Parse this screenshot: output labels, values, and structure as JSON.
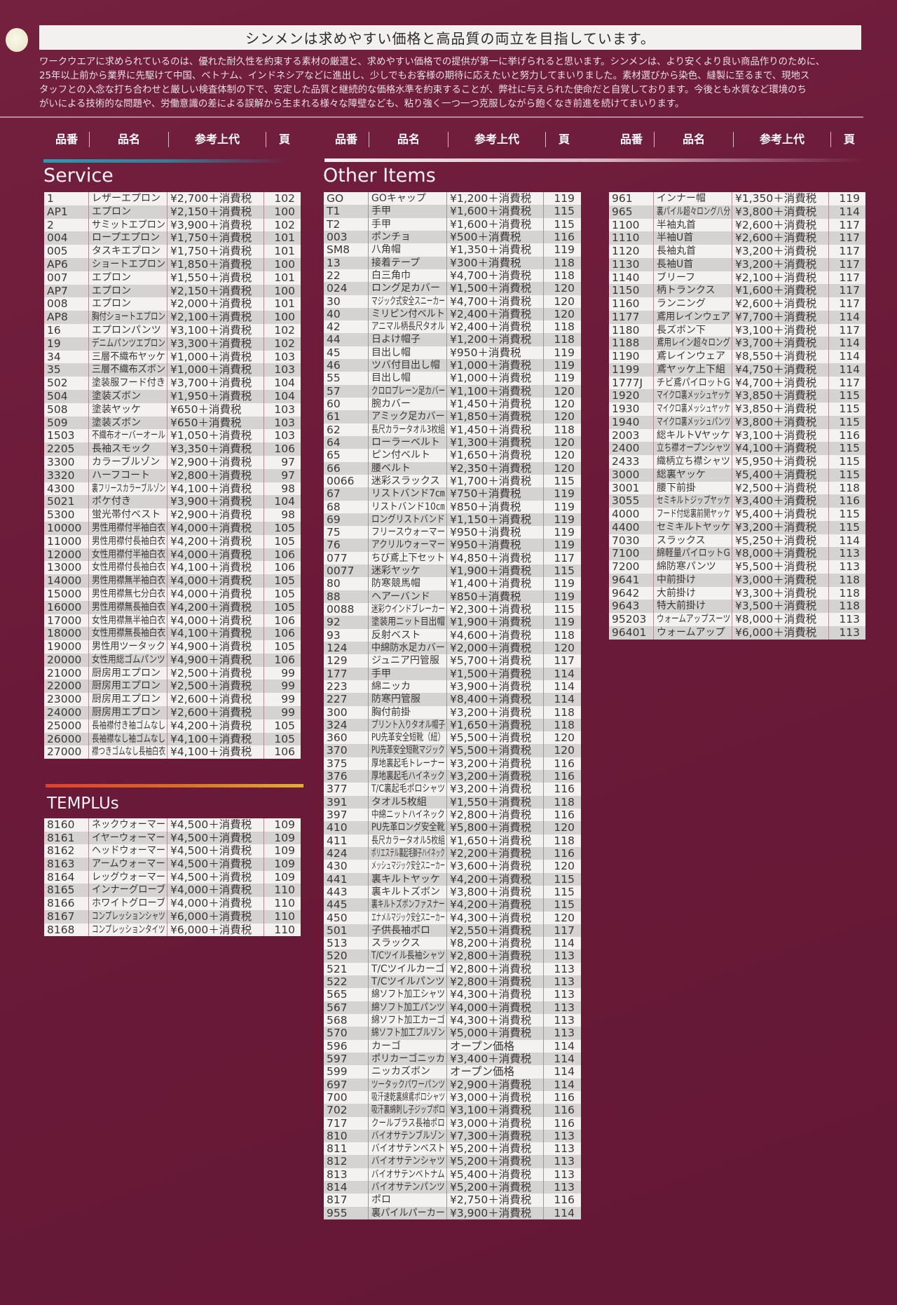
{
  "header": {
    "title": "シンメンは求めやすい価格と高品質の両立を目指しています。",
    "intro_lines": [
      "ワークウエアに求められているのは、優れた耐久性を約束する素材の厳選と、求めやすい価格での提供が第一に挙げられると思います。シンメンは、より安くより良い商品作りのために、",
      "25年以上前から業界に先駆けて中国、ベトナム、インドネシアなどに進出し、少しでもお客様の期待に応えたいと努力してまいりました。素材選びから染色、縫製に至るまで、現地ス",
      "タッフとの入念な打ち合わせと厳しい検査体制の下で、安定した品質と継続的な価格水準を約束することが、弊社に与えられた使命だと自覚しております。今後とも水質など環境のち",
      "がいによる技術的な問題や、労働意識の差による誤解から生まれる様々な障壁なども、粘り強く一つ一つ克服しながら飽くなき前進を続けてまいります。"
    ]
  },
  "columns": [
    "品番",
    "品名",
    "参考上代",
    "頁"
  ],
  "colors": {
    "background": "#6e1c3c",
    "service_bar": "#2a9bb0",
    "templus_bar_start": "#e0402a",
    "templus_bar_end": "#e0b030"
  },
  "sections": {
    "service": {
      "title": "Service",
      "rows": [
        [
          "1",
          "レザーエプロン",
          "¥2,700＋消費税",
          "102"
        ],
        [
          "AP1",
          "エプロン",
          "¥2,150＋消費税",
          "100"
        ],
        [
          "2",
          "サミットエプロン",
          "¥3,900＋消費税",
          "102"
        ],
        [
          "004",
          "ロープエプロン",
          "¥1,750＋消費税",
          "101"
        ],
        [
          "005",
          "タスキエプロン",
          "¥1,750＋消費税",
          "101"
        ],
        [
          "AP6",
          "ショートエプロン",
          "¥1,850＋消費税",
          "100"
        ],
        [
          "007",
          "エプロン",
          "¥1,550＋消費税",
          "101"
        ],
        [
          "AP7",
          "エプロン",
          "¥2,150＋消費税",
          "100"
        ],
        [
          "008",
          "エプロン",
          "¥2,000＋消費税",
          "101"
        ],
        [
          "AP8",
          "胸付ショートエプロン",
          "¥2,100＋消費税",
          "100"
        ],
        [
          "16",
          "エプロンパンツ",
          "¥3,100＋消費税",
          "102"
        ],
        [
          "19",
          "デニムパンツエプロン",
          "¥3,300＋消費税",
          "102"
        ],
        [
          "34",
          "三層不織布ヤッケ",
          "¥1,000＋消費税",
          "103"
        ],
        [
          "35",
          "三層不織布ズボン",
          "¥1,000＋消費税",
          "103"
        ],
        [
          "502",
          "塗装服フード付き",
          "¥3,700＋消費税",
          "104"
        ],
        [
          "504",
          "塗装ズボン",
          "¥1,950＋消費税",
          "104"
        ],
        [
          "508",
          "塗装ヤッケ",
          "¥650＋消費税",
          "103"
        ],
        [
          "509",
          "塗装ズボン",
          "¥650＋消費税",
          "103"
        ],
        [
          "1503",
          "不織布オーバーオール",
          "¥1,050＋消費税",
          "103"
        ],
        [
          "2205",
          "長袖スモック",
          "¥3,350＋消費税",
          "106"
        ],
        [
          "3300",
          "カラーブルゾン",
          "¥2,900＋消費税",
          "97"
        ],
        [
          "3320",
          "ハーフコート",
          "¥2,800＋消費税",
          "97"
        ],
        [
          "4300",
          "裏フリースカラーブルゾン",
          "¥4,100＋消費税",
          "98"
        ],
        [
          "5021",
          "ポケ付き",
          "¥3,900＋消費税",
          "104"
        ],
        [
          "5300",
          "蛍光帯付ベスト",
          "¥2,900＋消費税",
          "98"
        ],
        [
          "10000",
          "男性用襟付半袖白衣",
          "¥4,000＋消費税",
          "105"
        ],
        [
          "11000",
          "男性用襟付長袖白衣",
          "¥4,200＋消費税",
          "105"
        ],
        [
          "12000",
          "女性用襟付半袖白衣",
          "¥4,000＋消費税",
          "106"
        ],
        [
          "13000",
          "女性用襟付長袖白衣",
          "¥4,100＋消費税",
          "106"
        ],
        [
          "14000",
          "男性用襟無半袖白衣",
          "¥4,000＋消費税",
          "105"
        ],
        [
          "15000",
          "男性用襟無七分白衣",
          "¥4,000＋消費税",
          "105"
        ],
        [
          "16000",
          "男性用襟無長袖白衣",
          "¥4,200＋消費税",
          "105"
        ],
        [
          "17000",
          "女性用襟無半袖白衣",
          "¥4,000＋消費税",
          "106"
        ],
        [
          "18000",
          "女性用襟無長袖白衣",
          "¥4,100＋消費税",
          "106"
        ],
        [
          "19000",
          "男性用ツータック",
          "¥4,900＋消費税",
          "105"
        ],
        [
          "20000",
          "女性用総ゴムパンツ",
          "¥4,900＋消費税",
          "106"
        ],
        [
          "21000",
          "厨房用エプロン",
          "¥2,500＋消費税",
          "99"
        ],
        [
          "22000",
          "厨房用エプロン",
          "¥2,500＋消費税",
          "99"
        ],
        [
          "23000",
          "厨房用エプロン",
          "¥2,600＋消費税",
          "99"
        ],
        [
          "24000",
          "厨房用エプロン",
          "¥2,600＋消費税",
          "99"
        ],
        [
          "25000",
          "長袖襟付き袖ゴムなし",
          "¥4,200＋消費税",
          "105"
        ],
        [
          "26000",
          "長袖襟なし袖ゴムなし",
          "¥4,100＋消費税",
          "105"
        ],
        [
          "27000",
          "襟つきゴムなし長袖白衣",
          "¥4,100＋消費税",
          "106"
        ]
      ]
    },
    "templus": {
      "title": "TEMPLUs",
      "rows": [
        [
          "8160",
          "ネックウォーマー",
          "¥4,500＋消費税",
          "109"
        ],
        [
          "8161",
          "イヤーウォーマー",
          "¥4,500＋消費税",
          "109"
        ],
        [
          "8162",
          "ヘッドウォーマー",
          "¥4,500＋消費税",
          "109"
        ],
        [
          "8163",
          "アームウォーマー",
          "¥4,500＋消費税",
          "109"
        ],
        [
          "8164",
          "レッグウォーマー",
          "¥4,500＋消費税",
          "109"
        ],
        [
          "8165",
          "インナーグローブ",
          "¥4,000＋消費税",
          "110"
        ],
        [
          "8166",
          "ホワイトグローブ",
          "¥4,000＋消費税",
          "110"
        ],
        [
          "8167",
          "コンプレッションシャツ",
          "¥6,000＋消費税",
          "110"
        ],
        [
          "8168",
          "コンプレッションタイツ",
          "¥6,000＋消費税",
          "110"
        ]
      ]
    },
    "other": {
      "title": "Other Items",
      "rows": [
        [
          "GO",
          "GOキャップ",
          "¥1,200＋消費税",
          "119"
        ],
        [
          "T1",
          "手甲",
          "¥1,600＋消費税",
          "115"
        ],
        [
          "T2",
          "手甲",
          "¥1,600＋消費税",
          "115"
        ],
        [
          "003",
          "ポンチョ",
          "¥500＋消費税",
          "116"
        ],
        [
          "SM8",
          "八角帽",
          "¥1,350＋消費税",
          "119"
        ],
        [
          "13",
          "接着テープ",
          "¥300＋消費税",
          "118"
        ],
        [
          "22",
          "白三角巾",
          "¥4,700＋消費税",
          "118"
        ],
        [
          "024",
          "ロング足カバー",
          "¥1,500＋消費税",
          "120"
        ],
        [
          "30",
          "マジック式安全スニーカー",
          "¥4,700＋消費税",
          "120"
        ],
        [
          "40",
          "ミリピン付ベルト",
          "¥2,400＋消費税",
          "120"
        ],
        [
          "42",
          "アニマル柄長尺タオル",
          "¥2,400＋消費税",
          "118"
        ],
        [
          "44",
          "日よけ帽子",
          "¥1,200＋消費税",
          "118"
        ],
        [
          "45",
          "目出し帽",
          "¥950＋消費税",
          "119"
        ],
        [
          "46",
          "ツバ付目出し帽",
          "¥1,000＋消費税",
          "119"
        ],
        [
          "55",
          "目出し帽",
          "¥1,000＋消費税",
          "119"
        ],
        [
          "57",
          "クロロプレーン足カバー",
          "¥1,100＋消費税",
          "120"
        ],
        [
          "60",
          "腕カバー",
          "¥1,450＋消費税",
          "120"
        ],
        [
          "61",
          "アミック足カバー",
          "¥1,850＋消費税",
          "120"
        ],
        [
          "62",
          "長尺カラータオル3枚組",
          "¥1,450＋消費税",
          "118"
        ],
        [
          "64",
          "ローラーベルト",
          "¥1,300＋消費税",
          "120"
        ],
        [
          "65",
          "ピン付ベルト",
          "¥1,650＋消費税",
          "120"
        ],
        [
          "66",
          "腰ベルト",
          "¥2,350＋消費税",
          "120"
        ],
        [
          "0066",
          "迷彩スラックス",
          "¥1,700＋消費税",
          "115"
        ],
        [
          "67",
          "リストバンド7㎝",
          "¥750＋消費税",
          "119"
        ],
        [
          "68",
          "リストバンド10㎝",
          "¥850＋消費税",
          "119"
        ],
        [
          "69",
          "ロングリストバンド",
          "¥1,150＋消費税",
          "119"
        ],
        [
          "75",
          "フリースウォーマー",
          "¥950＋消費税",
          "119"
        ],
        [
          "76",
          "アクリルウォーマー",
          "¥950＋消費税",
          "119"
        ],
        [
          "077",
          "ちび鳶上下セット",
          "¥4,850＋消費税",
          "117"
        ],
        [
          "0077",
          "迷彩ヤッケ",
          "¥1,900＋消費税",
          "115"
        ],
        [
          "80",
          "防寒競馬帽",
          "¥1,400＋消費税",
          "119"
        ],
        [
          "88",
          "ヘアーバンド",
          "¥850＋消費税",
          "119"
        ],
        [
          "0088",
          "迷彩ウインドブレーカー",
          "¥2,300＋消費税",
          "115"
        ],
        [
          "92",
          "塗装用ニット目出帽",
          "¥1,900＋消費税",
          "119"
        ],
        [
          "93",
          "反射ベスト",
          "¥4,600＋消費税",
          "118"
        ],
        [
          "124",
          "中綿防水足カバー",
          "¥2,000＋消費税",
          "120"
        ],
        [
          "129",
          "ジュニア円管服",
          "¥5,700＋消費税",
          "117"
        ],
        [
          "177",
          "手甲",
          "¥1,500＋消費税",
          "114"
        ],
        [
          "223",
          "綿ニッカ",
          "¥3,900＋消費税",
          "114"
        ],
        [
          "227",
          "防寒円管服",
          "¥8,400＋消費税",
          "114"
        ],
        [
          "300",
          "胸付前掛",
          "¥3,200＋消費税",
          "118"
        ],
        [
          "324",
          "プリント入りタオル帽子",
          "¥1,650＋消費税",
          "118"
        ],
        [
          "360",
          "PU先革安全短靴（紐）",
          "¥5,500＋消費税",
          "120"
        ],
        [
          "370",
          "PU先革安全短靴マジック",
          "¥5,500＋消費税",
          "120"
        ],
        [
          "375",
          "厚地裏起毛トレーナー",
          "¥3,200＋消費税",
          "116"
        ],
        [
          "376",
          "厚地裏起毛ハイネック",
          "¥3,200＋消費税",
          "116"
        ],
        [
          "377",
          "T/C裏起毛ポロシャツ",
          "¥3,200＋消費税",
          "116"
        ],
        [
          "391",
          "タオル5枚組",
          "¥1,550＋消費税",
          "118"
        ],
        [
          "397",
          "中綿ニットハイネック",
          "¥2,800＋消費税",
          "116"
        ],
        [
          "410",
          "PU先革ロング安全靴",
          "¥5,800＋消費税",
          "120"
        ],
        [
          "411",
          "長尺カラータオル5枚組",
          "¥1,650＋消費税",
          "118"
        ],
        [
          "424",
          "ポリエステル裏起毛獅子ハイネック",
          "¥2,200＋消費税",
          "116"
        ],
        [
          "430",
          "メッシュマジック安全スニーカー",
          "¥3,600＋消費税",
          "120"
        ],
        [
          "441",
          "裏キルトヤッケ",
          "¥4,200＋消費税",
          "115"
        ],
        [
          "443",
          "裏キルトズボン",
          "¥3,800＋消費税",
          "115"
        ],
        [
          "445",
          "裏キルトズボンファスナー",
          "¥4,200＋消費税",
          "115"
        ],
        [
          "450",
          "エナメルマジック安全スニーカー",
          "¥4,300＋消費税",
          "120"
        ],
        [
          "501",
          "子供長袖ポロ",
          "¥2,550＋消費税",
          "117"
        ],
        [
          "513",
          "スラックス",
          "¥8,200＋消費税",
          "114"
        ],
        [
          "520",
          "T/Cツイル長袖シャツ",
          "¥2,800＋消費税",
          "113"
        ],
        [
          "521",
          "T/Cツイルカーゴ",
          "¥2,800＋消費税",
          "113"
        ],
        [
          "522",
          "T/Cツイルパンツ",
          "¥2,800＋消費税",
          "113"
        ],
        [
          "565",
          "綿ソフト加工シャツ",
          "¥4,300＋消費税",
          "113"
        ],
        [
          "567",
          "綿ソフト加工パンツ",
          "¥4,000＋消費税",
          "113"
        ],
        [
          "568",
          "綿ソフト加工カーゴ",
          "¥4,300＋消費税",
          "113"
        ],
        [
          "570",
          "綿ソフト加工ブルゾン",
          "¥5,000＋消費税",
          "113"
        ],
        [
          "596",
          "カーゴ",
          "オープン価格",
          "114"
        ],
        [
          "597",
          "ポリカーゴニッカ",
          "¥3,400＋消費税",
          "114"
        ],
        [
          "599",
          "ニッカズボン",
          "オープン価格",
          "114"
        ],
        [
          "697",
          "ツータックパワーパンツ",
          "¥2,900＋消費税",
          "114"
        ],
        [
          "700",
          "吸汗速乾裏綿鳶ポロシャツ",
          "¥3,000＋消費税",
          "116"
        ],
        [
          "702",
          "吸汗裏綿刺し子ジップポロ",
          "¥3,100＋消費税",
          "116"
        ],
        [
          "717",
          "クールプラス長袖ポロ",
          "¥3,000＋消費税",
          "116"
        ],
        [
          "810",
          "バイオサテンブルゾン",
          "¥7,300＋消費税",
          "113"
        ],
        [
          "811",
          "バイオサテンベスト",
          "¥5,200＋消費税",
          "113"
        ],
        [
          "812",
          "バイオサテンシャツ",
          "¥5,200＋消費税",
          "113"
        ],
        [
          "813",
          "バイオサテンベトナム",
          "¥5,400＋消費税",
          "113"
        ],
        [
          "814",
          "バイオサテンパンツ",
          "¥5,200＋消費税",
          "113"
        ],
        [
          "817",
          "ポロ",
          "¥2,750＋消費税",
          "116"
        ],
        [
          "955",
          "裏パイルパーカー",
          "¥3,900＋消費税",
          "114"
        ]
      ]
    },
    "other2": {
      "rows": [
        [
          "961",
          "インナー帽",
          "¥1,350＋消費税",
          "119"
        ],
        [
          "965",
          "裏パイル超々ロング八分",
          "¥3,800＋消費税",
          "114"
        ],
        [
          "1100",
          "半袖丸首",
          "¥2,600＋消費税",
          "117"
        ],
        [
          "1110",
          "半袖U首",
          "¥2,600＋消費税",
          "117"
        ],
        [
          "1120",
          "長袖丸首",
          "¥3,200＋消費税",
          "117"
        ],
        [
          "1130",
          "長袖U首",
          "¥3,200＋消費税",
          "117"
        ],
        [
          "1140",
          "ブリーフ",
          "¥2,100＋消費税",
          "117"
        ],
        [
          "1150",
          "柄トランクス",
          "¥1,600＋消費税",
          "117"
        ],
        [
          "1160",
          "ランニング",
          "¥2,600＋消費税",
          "117"
        ],
        [
          "1177",
          "鳶用レインウェア",
          "¥7,700＋消費税",
          "114"
        ],
        [
          "1180",
          "長ズボン下",
          "¥3,100＋消費税",
          "117"
        ],
        [
          "1188",
          "鳶用レイン超々ロング",
          "¥3,700＋消費税",
          "114"
        ],
        [
          "1190",
          "鳶レインウェア",
          "¥8,550＋消費税",
          "114"
        ],
        [
          "1199",
          "鳶ヤッケ上下組",
          "¥4,750＋消費税",
          "114"
        ],
        [
          "1777J",
          "チビ鳶パイロットG",
          "¥4,700＋消費税",
          "117"
        ],
        [
          "1920",
          "マイクロ裏メッシュヤッケ",
          "¥3,850＋消費税",
          "115"
        ],
        [
          "1930",
          "マイクロ裏メッシュヤッケ",
          "¥3,850＋消費税",
          "115"
        ],
        [
          "1940",
          "マイクロ裏メッシュパンツ",
          "¥3,800＋消費税",
          "115"
        ],
        [
          "2003",
          "総キルトVヤッケ",
          "¥3,100＋消費税",
          "116"
        ],
        [
          "2400",
          "立ち襟オープンシャツ",
          "¥4,100＋消費税",
          "115"
        ],
        [
          "2433",
          "織柄立ち襟シャツ",
          "¥5,950＋消費税",
          "115"
        ],
        [
          "3000",
          "総裏ヤッケ",
          "¥5,400＋消費税",
          "115"
        ],
        [
          "3001",
          "腰下前掛",
          "¥2,500＋消費税",
          "118"
        ],
        [
          "3055",
          "セミキルトジップヤッケ",
          "¥3,400＋消費税",
          "116"
        ],
        [
          "4000",
          "フード付総裏前開ヤッケ",
          "¥5,400＋消費税",
          "115"
        ],
        [
          "4400",
          "セミキルトヤッケ",
          "¥3,200＋消費税",
          "115"
        ],
        [
          "7030",
          "スラックス",
          "¥5,250＋消費税",
          "114"
        ],
        [
          "7100",
          "綿軽量パイロットG",
          "¥8,000＋消費税",
          "113"
        ],
        [
          "7200",
          "綿防寒パンツ",
          "¥5,500＋消費税",
          "113"
        ],
        [
          "9641",
          "中前掛け",
          "¥3,000＋消費税",
          "118"
        ],
        [
          "9642",
          "大前掛け",
          "¥3,300＋消費税",
          "118"
        ],
        [
          "9643",
          "特大前掛け",
          "¥3,500＋消費税",
          "118"
        ],
        [
          "95203",
          "ウォームアップスーツ",
          "¥8,000＋消費税",
          "113"
        ],
        [
          "96401",
          "ウォームアップ",
          "¥6,000＋消費税",
          "113"
        ]
      ]
    }
  }
}
